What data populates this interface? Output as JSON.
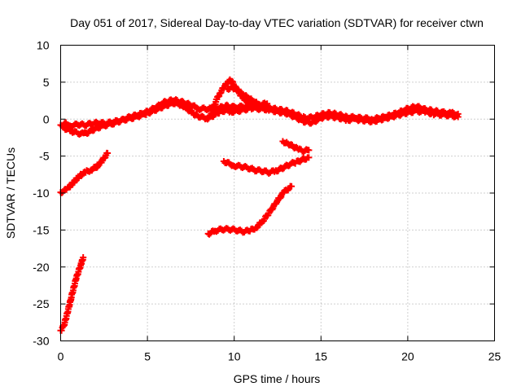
{
  "chart_data": {
    "type": "scatter",
    "title": "Day 051 of 2017, Sidereal Day-to-day VTEC variation (SDTVAR) for receiver ctwn",
    "xlabel": "GPS time / hours",
    "ylabel": "SDTVAR / TECUs",
    "xlim": [
      0,
      25
    ],
    "ylim": [
      -30,
      10
    ],
    "xticks": [
      0,
      5,
      10,
      15,
      20,
      25
    ],
    "yticks": [
      -30,
      -25,
      -20,
      -15,
      -10,
      -5,
      0,
      5,
      10
    ],
    "grid": true,
    "marker": "plus",
    "color": "#ff0000",
    "series": [
      {
        "name": "main-band-low",
        "x": [
          0,
          0.3,
          0.6,
          1.0,
          1.4,
          1.8,
          2.2,
          2.6,
          3.0,
          3.4,
          3.8,
          4.2,
          4.6,
          5.0,
          5.5,
          6.0,
          6.5,
          7.0,
          7.4,
          7.8,
          8.1,
          8.4,
          8.6,
          8.8,
          9.0,
          9.2,
          9.5,
          9.8,
          10.2,
          10.6,
          11.0,
          11.5,
          12.0,
          12.5,
          13.0,
          13.5,
          14.0,
          14.5,
          15.0,
          15.5,
          16.0,
          16.5,
          17.0,
          17.5,
          18.0,
          18.5,
          19.0,
          19.5,
          20.0,
          20.5,
          21.0,
          21.5,
          22.0,
          22.5,
          22.9
        ],
        "y": [
          -0.8,
          -0.6,
          -0.9,
          -0.7,
          -0.8,
          -0.6,
          -0.5,
          -0.6,
          -0.4,
          -0.2,
          0,
          0.2,
          0.5,
          0.8,
          1.3,
          1.8,
          2.2,
          1.9,
          1.2,
          0.5,
          0.3,
          0.1,
          0.2,
          0.5,
          0.8,
          1.0,
          1.2,
          1.0,
          1.1,
          1.3,
          1.5,
          1.4,
          1.3,
          1.0,
          0.8,
          0.3,
          -0.3,
          -0.5,
          0.2,
          0.4,
          0.2,
          -0.1,
          0,
          -0.2,
          -0.3,
          0,
          0.3,
          0.6,
          0.9,
          1.1,
          1.0,
          0.7,
          0.6,
          0.5,
          0.3
        ]
      },
      {
        "name": "main-band-high",
        "x": [
          0.2,
          0.6,
          1.0,
          1.4,
          1.8,
          2.2,
          2.6,
          3.0,
          3.5,
          4.0,
          4.5,
          5.0,
          5.5,
          6.0,
          6.5,
          7.0,
          7.5,
          8.0,
          9.0,
          9.5,
          10.0,
          10.5,
          11.0,
          11.5,
          12.0,
          12.5,
          13.0,
          13.5,
          14.0,
          14.5,
          15.0,
          15.5,
          16.0,
          16.5,
          17.0,
          17.5,
          18.0,
          18.5,
          19.0,
          19.5,
          20.0,
          20.5,
          21.0,
          21.5,
          22.0,
          22.5,
          22.9
        ],
        "y": [
          -1.2,
          -1.6,
          -1.9,
          -2.0,
          -1.5,
          -1.1,
          -0.8,
          -0.6,
          -0.2,
          0.3,
          0.6,
          1.0,
          1.6,
          2.3,
          2.6,
          2.3,
          1.9,
          1.4,
          1.4,
          1.8,
          1.6,
          1.7,
          1.7,
          1.6,
          1.5,
          1.3,
          1.1,
          0.7,
          0.2,
          0.2,
          0.6,
          0.8,
          0.6,
          0.3,
          0.2,
          0.1,
          0,
          0.2,
          0.5,
          0.9,
          1.4,
          1.7,
          1.3,
          1.1,
          0.9,
          0.8,
          0.7
        ]
      },
      {
        "name": "excursion-rising",
        "x": [
          8.6,
          8.8,
          9.0,
          9.2,
          9.4,
          9.6,
          9.8,
          10.0,
          10.2,
          10.4,
          10.6,
          10.8,
          11.0,
          11.2,
          11.4,
          11.6,
          11.9
        ],
        "y": [
          0.5,
          1.5,
          2.7,
          3.6,
          4.3,
          4.9,
          5.3,
          4.6,
          3.8,
          3.2,
          2.7,
          2.2,
          1.9,
          1.7,
          1.8,
          2.0,
          2.1
        ]
      },
      {
        "name": "excursion-upper",
        "x": [
          9.6,
          9.9,
          10.2,
          10.5,
          10.8,
          11.1,
          11.4,
          11.7
        ],
        "y": [
          4.1,
          4.3,
          3.9,
          3.3,
          2.9,
          2.4,
          2.0,
          1.8
        ]
      },
      {
        "name": "arc-early",
        "x": [
          0,
          0.2,
          0.4,
          0.6,
          0.8,
          1.0,
          1.2,
          1.5,
          1.8,
          2.1,
          2.4,
          2.7
        ],
        "y": [
          -9.9,
          -9.7,
          -9.4,
          -8.9,
          -8.4,
          -7.9,
          -7.5,
          -7.1,
          -6.8,
          -6.4,
          -5.6,
          -4.6
        ]
      },
      {
        "name": "arc-steep",
        "x": [
          0,
          0.1,
          0.2,
          0.3,
          0.4,
          0.5,
          0.6,
          0.7,
          0.8,
          0.9,
          1.0,
          1.1,
          1.2,
          1.3
        ],
        "y": [
          -28.6,
          -28.3,
          -27.8,
          -27.0,
          -26.1,
          -25.2,
          -24.2,
          -23.3,
          -22.4,
          -21.5,
          -20.8,
          -20.1,
          -19.5,
          -18.7
        ]
      },
      {
        "name": "arc-mid",
        "x": [
          9.4,
          9.7,
          10.0,
          10.4,
          10.8,
          11.2,
          11.6,
          12.0,
          12.4,
          12.8,
          13.2,
          13.6,
          14.0,
          14.3
        ],
        "y": [
          -5.7,
          -6.0,
          -6.3,
          -6.4,
          -6.6,
          -6.9,
          -7.0,
          -7.2,
          -7.0,
          -6.6,
          -6.1,
          -5.8,
          -5.4,
          -5.2
        ]
      },
      {
        "name": "arc-short",
        "x": [
          12.8,
          13.1,
          13.4,
          13.7,
          14.0,
          14.3
        ],
        "y": [
          -3.0,
          -3.3,
          -3.7,
          -4.1,
          -4.3,
          -4.2
        ]
      },
      {
        "name": "arc-low",
        "x": [
          8.5,
          8.9,
          9.3,
          9.7,
          10.1,
          10.5,
          10.9,
          11.3,
          11.7,
          12.1,
          12.5,
          12.9,
          13.3
        ],
        "y": [
          -15.5,
          -15.1,
          -14.9,
          -14.9,
          -15.0,
          -15.2,
          -15.1,
          -14.6,
          -13.6,
          -12.4,
          -11.0,
          -9.8,
          -9.1
        ]
      }
    ]
  }
}
